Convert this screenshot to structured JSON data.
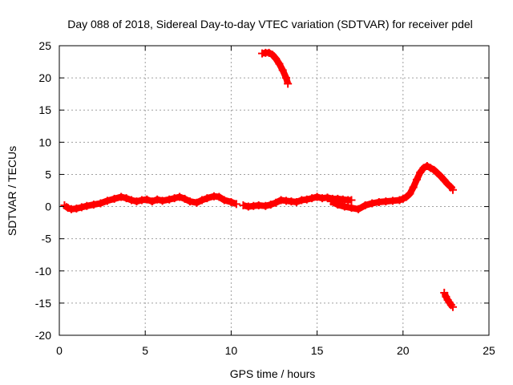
{
  "chart_data": {
    "type": "scatter",
    "title": "Day 088 of 2018, Sidereal Day-to-day VTEC variation (SDTVAR) for receiver pdel",
    "xlabel": "GPS time / hours",
    "ylabel": "SDTVAR / TECUs",
    "xlim": [
      0,
      25
    ],
    "ylim": [
      -20,
      25
    ],
    "xticks": [
      0,
      5,
      10,
      15,
      20,
      25
    ],
    "yticks": [
      -20,
      -15,
      -10,
      -5,
      0,
      5,
      10,
      15,
      20,
      25
    ],
    "xtick_labels": [
      "0",
      "5",
      "10",
      "15",
      "20",
      "25"
    ],
    "ytick_labels": [
      "-20",
      "-15",
      "-10",
      "-5",
      "0",
      "5",
      "10",
      "15",
      "20",
      "25"
    ],
    "grid": true,
    "series": [
      {
        "name": "SDTVAR",
        "color": "#ff0000",
        "segments": [
          {
            "x": [
              0.3,
              0.5,
              0.7,
              1.0,
              1.3,
              1.6,
              2.0,
              2.4,
              2.8,
              3.2,
              3.6,
              3.9,
              4.2,
              4.5,
              4.8,
              5.1,
              5.4,
              5.7,
              6.0,
              6.4,
              6.7,
              7.0,
              7.3,
              7.6,
              8.0,
              8.3,
              8.6,
              9.0,
              9.3,
              9.6,
              10.0,
              10.3
            ],
            "y": [
              0.2,
              -0.2,
              -0.4,
              -0.3,
              -0.1,
              0.1,
              0.3,
              0.5,
              0.9,
              1.2,
              1.5,
              1.3,
              1.0,
              0.8,
              1.0,
              1.1,
              0.8,
              1.1,
              0.9,
              1.1,
              1.3,
              1.5,
              1.2,
              0.8,
              0.6,
              1.0,
              1.3,
              1.6,
              1.5,
              1.0,
              0.7,
              0.4
            ]
          },
          {
            "x": [
              10.7,
              11.0,
              11.3,
              11.6,
              12.0,
              12.3,
              12.6,
              12.9,
              13.2,
              13.5,
              13.8,
              14.1,
              14.4,
              14.7,
              15.0,
              15.3,
              15.6,
              15.9,
              16.2,
              16.5,
              16.8,
              17.0
            ],
            "y": [
              0.2,
              0.0,
              0.1,
              0.2,
              0.1,
              0.3,
              0.6,
              1.0,
              0.9,
              0.8,
              0.7,
              1.0,
              1.1,
              1.3,
              1.5,
              1.3,
              1.4,
              1.2,
              1.2,
              1.1,
              1.0,
              1.0
            ]
          },
          {
            "x": [
              15.8,
              16.2,
              16.6,
              17.0,
              17.4,
              17.8,
              18.2,
              18.6,
              19.0,
              19.4,
              19.8,
              20.0,
              20.2,
              20.4,
              20.6,
              20.8,
              21.0,
              21.2,
              21.4,
              21.6,
              21.8,
              22.0,
              22.2,
              22.4,
              22.6,
              22.8,
              22.9
            ],
            "y": [
              0.8,
              0.3,
              0.0,
              -0.2,
              -0.4,
              0.2,
              0.5,
              0.7,
              0.8,
              0.9,
              1.0,
              1.2,
              1.5,
              2.0,
              3.0,
              4.2,
              5.3,
              6.0,
              6.3,
              6.0,
              5.7,
              5.2,
              4.7,
              4.1,
              3.5,
              3.0,
              2.6
            ]
          },
          {
            "x": [
              11.8,
              12.0,
              12.2,
              12.4,
              12.6,
              12.8,
              13.0,
              13.2,
              13.3
            ],
            "y": [
              23.8,
              23.9,
              23.9,
              23.6,
              23.0,
              22.2,
              21.2,
              20.0,
              19.1
            ]
          },
          {
            "x": [
              22.4,
              22.5,
              22.6,
              22.7,
              22.8,
              22.9
            ],
            "y": [
              -13.4,
              -14.0,
              -14.5,
              -14.9,
              -15.3,
              -15.6
            ]
          }
        ]
      }
    ]
  }
}
